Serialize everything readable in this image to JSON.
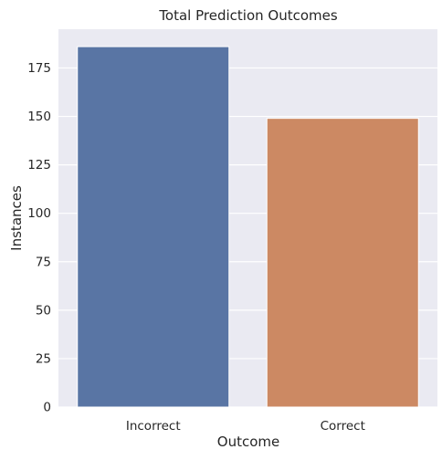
{
  "chart_data": {
    "type": "bar",
    "title": "Total Prediction Outcomes",
    "xlabel": "Outcome",
    "ylabel": "Instances",
    "categories": [
      "Incorrect",
      "Correct"
    ],
    "values": [
      186,
      149
    ],
    "ylim": [
      0,
      195
    ],
    "yticks": [
      0,
      25,
      50,
      75,
      100,
      125,
      150,
      175
    ],
    "grid": true,
    "colors": {
      "bars": [
        "#5975a4",
        "#cc8963"
      ],
      "background": "#eaeaf2",
      "grid": "#ffffff"
    }
  }
}
